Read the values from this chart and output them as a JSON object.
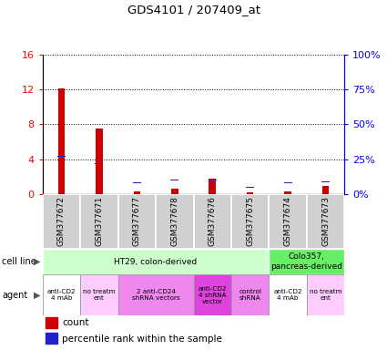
{
  "title": "GDS4101 / 207409_at",
  "samples": [
    "GSM377672",
    "GSM377671",
    "GSM377677",
    "GSM377678",
    "GSM377676",
    "GSM377675",
    "GSM377674",
    "GSM377673"
  ],
  "count_values": [
    12.1,
    7.5,
    0.3,
    0.6,
    1.8,
    0.2,
    0.35,
    1.0
  ],
  "percentile_values": [
    27,
    22,
    8,
    10,
    10,
    5,
    8,
    9
  ],
  "ylim_left": [
    0,
    16
  ],
  "ylim_right": [
    0,
    100
  ],
  "yticks_left": [
    0,
    4,
    8,
    12,
    16
  ],
  "yticks_right": [
    0,
    25,
    50,
    75,
    100
  ],
  "ytick_labels_right": [
    "0%",
    "25%",
    "50%",
    "75%",
    "100%"
  ],
  "count_color": "#cc0000",
  "percentile_color": "#2222cc",
  "cell_line_groups": [
    {
      "label": "HT29, colon-derived",
      "start": 0,
      "end": 6,
      "color": "#ccffcc"
    },
    {
      "label": "Colo357,\npancreas-derived",
      "start": 6,
      "end": 8,
      "color": "#66ee66"
    }
  ],
  "agent_groups": [
    {
      "label": "anti-CD2\n4 mAb",
      "start": 0,
      "end": 1,
      "color": "#ffffff"
    },
    {
      "label": "no treatm\nent",
      "start": 1,
      "end": 2,
      "color": "#ffccff"
    },
    {
      "label": "2 anti-CD24\nshRNA vectors",
      "start": 2,
      "end": 4,
      "color": "#ee88ee"
    },
    {
      "label": "anti-CD2\n4 shRNA\nvector",
      "start": 4,
      "end": 5,
      "color": "#dd44dd"
    },
    {
      "label": "control\nshRNA",
      "start": 5,
      "end": 6,
      "color": "#ee88ee"
    },
    {
      "label": "anti-CD2\n4 mAb",
      "start": 6,
      "end": 7,
      "color": "#ffffff"
    },
    {
      "label": "no treatm\nent",
      "start": 7,
      "end": 8,
      "color": "#ffccff"
    }
  ]
}
